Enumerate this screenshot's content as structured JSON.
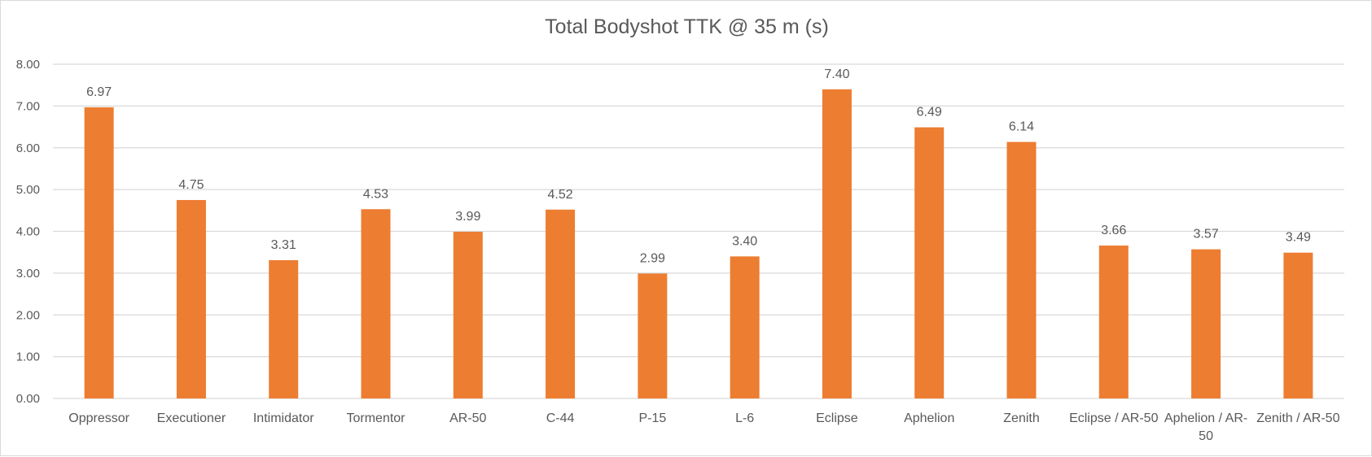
{
  "chart_data": {
    "type": "bar",
    "title": "Total Bodyshot TTK @ 35 m (s)",
    "xlabel": "",
    "ylabel": "",
    "ylim": [
      0,
      8
    ],
    "yticks": [
      "0.00",
      "1.00",
      "2.00",
      "3.00",
      "4.00",
      "5.00",
      "6.00",
      "7.00",
      "8.00"
    ],
    "grid": true,
    "legend": "none",
    "categories": [
      "Oppressor",
      "Executioner",
      "Intimidator",
      "Tormentor",
      "AR-50",
      "C-44",
      "P-15",
      "L-6",
      "Eclipse",
      "Aphelion",
      "Zenith",
      "Eclipse / AR-50",
      "Aphelion / AR-50",
      "Zenith / AR-50"
    ],
    "category_lines": [
      [
        "Oppressor"
      ],
      [
        "Executioner"
      ],
      [
        "Intimidator"
      ],
      [
        "Tormentor"
      ],
      [
        "AR-50"
      ],
      [
        "C-44"
      ],
      [
        "P-15"
      ],
      [
        "L-6"
      ],
      [
        "Eclipse"
      ],
      [
        "Aphelion"
      ],
      [
        "Zenith"
      ],
      [
        "Eclipse / AR-50"
      ],
      [
        "Aphelion / AR-",
        "50"
      ],
      [
        "Zenith / AR-50"
      ]
    ],
    "values": [
      6.97,
      4.75,
      3.31,
      4.53,
      3.99,
      4.52,
      2.99,
      3.4,
      7.4,
      6.49,
      6.14,
      3.66,
      3.57,
      3.49
    ],
    "value_labels": [
      "6.97",
      "4.75",
      "3.31",
      "4.53",
      "3.99",
      "4.52",
      "2.99",
      "3.40",
      "7.40",
      "6.49",
      "6.14",
      "3.66",
      "3.57",
      "3.49"
    ],
    "bar_color": "#ED7D31",
    "grid_color": "#D9D9D9"
  }
}
